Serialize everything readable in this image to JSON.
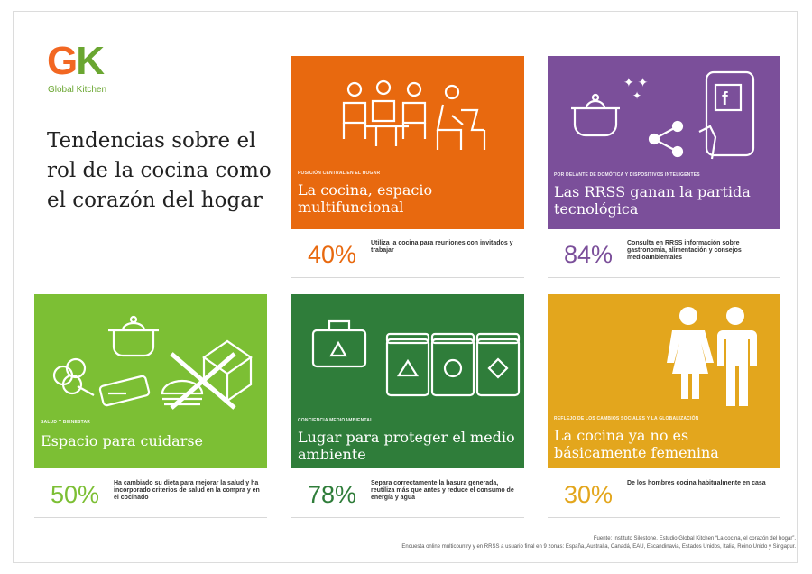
{
  "brand": {
    "mark_g": "G",
    "mark_k": "K",
    "name": "Global Kitchen"
  },
  "headline": "Tendencias sobre el rol de la cocina como el corazón del hogar",
  "colors": {
    "orange": "#e8690f",
    "purple": "#7b4f9a",
    "lime": "#7cbf34",
    "green": "#2f7d3a",
    "gold": "#e3a61d"
  },
  "cards": [
    {
      "kicker": "Posición central en el hogar",
      "title": "La cocina, espacio multifuncional",
      "percent": "40%",
      "text": "Utiliza la cocina para reuniones con invitados y trabajar",
      "icon": "people-at-table-icon"
    },
    {
      "kicker": "Por delante de domótica y dispositivos inteligentes",
      "title": "Las RRSS ganan la partida tecnológica",
      "percent": "84%",
      "text": "Consulta en RRSS información sobre gastronomía, alimentación y consejos medioambientales",
      "icon": "social-media-phone-icon"
    },
    {
      "kicker": "Salud y bienestar",
      "title": "Espacio para cuidarse",
      "percent": "50%",
      "text": "Ha cambiado su dieta para mejorar la salud y ha incorporado criterios de salud en la compra y en el cocinado",
      "icon": "healthy-cooking-icon"
    },
    {
      "kicker": "Conciencia medioambiental",
      "title": "Lugar para proteger el medio ambiente",
      "percent": "78%",
      "text": "Separa correctamente la basura generada, reutiliza más que antes y reduce el consumo de energía y agua",
      "icon": "recycling-bins-icon"
    },
    {
      "kicker": "Reflejo de los cambios sociales y la globalización",
      "title": "La cocina ya no es básicamente femenina",
      "percent": "30%",
      "text": "De los hombres cocina habitualmente en casa",
      "icon": "woman-man-icon"
    }
  ],
  "footer": {
    "line1": "Fuente: Instituto Silestone. Estudio Global Kitchen “La cocina, el corazón del hogar”.",
    "line2": "Encuesta online multicountry y en RRSS a usuario final en 9 zonas: España, Australia, Canadá, EAU, Escandinavia, Estados Unidos, Italia, Reino Unido y Singapur."
  }
}
